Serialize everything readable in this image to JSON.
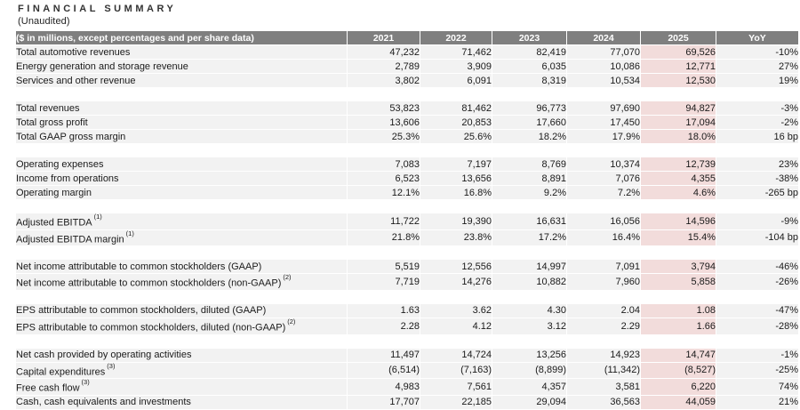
{
  "page": {
    "title": "FINANCIAL SUMMARY",
    "subtitle": "(Unaudited)"
  },
  "table": {
    "header": {
      "label": "($ in millions, except percentages and per share data)",
      "columns": [
        "2021",
        "2022",
        "2023",
        "2024",
        "2025",
        "YoY"
      ]
    },
    "highlight_column": "2025",
    "colors": {
      "header_bg": "#7f7f7f",
      "header_text": "#ffffff",
      "row_bg": "#f2f2f2",
      "highlight_bg": "#f2dcdb",
      "text": "#1a1a1a"
    },
    "sections": [
      {
        "rows": [
          {
            "label": "Total automotive revenues",
            "sup": "",
            "values": [
              "47,232",
              "71,462",
              "82,419",
              "77,070",
              "69,526",
              "-10%"
            ]
          },
          {
            "label": "Energy generation and storage revenue",
            "sup": "",
            "values": [
              "2,789",
              "3,909",
              "6,035",
              "10,086",
              "12,771",
              "27%"
            ]
          },
          {
            "label": "Services and other revenue",
            "sup": "",
            "values": [
              "3,802",
              "6,091",
              "8,319",
              "10,534",
              "12,530",
              "19%"
            ]
          }
        ]
      },
      {
        "rows": [
          {
            "label": "Total revenues",
            "sup": "",
            "values": [
              "53,823",
              "81,462",
              "96,773",
              "97,690",
              "94,827",
              "-3%"
            ]
          },
          {
            "label": "Total gross profit",
            "sup": "",
            "values": [
              "13,606",
              "20,853",
              "17,660",
              "17,450",
              "17,094",
              "-2%"
            ]
          },
          {
            "label": "Total GAAP gross margin",
            "sup": "",
            "values": [
              "25.3%",
              "25.6%",
              "18.2%",
              "17.9%",
              "18.0%",
              "16 bp"
            ]
          }
        ]
      },
      {
        "rows": [
          {
            "label": "Operating expenses",
            "sup": "",
            "values": [
              "7,083",
              "7,197",
              "8,769",
              "10,374",
              "12,739",
              "23%"
            ]
          },
          {
            "label": "Income from operations",
            "sup": "",
            "values": [
              "6,523",
              "13,656",
              "8,891",
              "7,076",
              "4,355",
              "-38%"
            ]
          },
          {
            "label": "Operating margin",
            "sup": "",
            "values": [
              "12.1%",
              "16.8%",
              "9.2%",
              "7.2%",
              "4.6%",
              "-265 bp"
            ]
          }
        ]
      },
      {
        "rows": [
          {
            "label": "Adjusted EBITDA",
            "sup": "(1)",
            "values": [
              "11,722",
              "19,390",
              "16,631",
              "16,056",
              "14,596",
              "-9%"
            ]
          },
          {
            "label": "Adjusted EBITDA margin",
            "sup": "(1)",
            "values": [
              "21.8%",
              "23.8%",
              "17.2%",
              "16.4%",
              "15.4%",
              "-104 bp"
            ]
          }
        ]
      },
      {
        "rows": [
          {
            "label": "Net income attributable to common stockholders (GAAP)",
            "sup": "",
            "values": [
              "5,519",
              "12,556",
              "14,997",
              "7,091",
              "3,794",
              "-46%"
            ]
          },
          {
            "label": "Net income attributable to common stockholders (non-GAAP)",
            "sup": "(2)",
            "values": [
              "7,719",
              "14,276",
              "10,882",
              "7,960",
              "5,858",
              "-26%"
            ]
          }
        ]
      },
      {
        "rows": [
          {
            "label": "EPS attributable to common stockholders, diluted (GAAP)",
            "sup": "",
            "values": [
              "1.63",
              "3.62",
              "4.30",
              "2.04",
              "1.08",
              "-47%"
            ]
          },
          {
            "label": "EPS attributable to common stockholders, diluted (non-GAAP)",
            "sup": "(2)",
            "values": [
              "2.28",
              "4.12",
              "3.12",
              "2.29",
              "1.66",
              "-28%"
            ]
          }
        ]
      },
      {
        "rows": [
          {
            "label": "Net cash provided by operating activities",
            "sup": "",
            "values": [
              "11,497",
              "14,724",
              "13,256",
              "14,923",
              "14,747",
              "-1%"
            ]
          },
          {
            "label": "Capital expenditures",
            "sup": "(3)",
            "values": [
              "(6,514)",
              "(7,163)",
              "(8,899)",
              "(11,342)",
              "(8,527)",
              "-25%"
            ]
          },
          {
            "label": "Free cash flow",
            "sup": "(3)",
            "values": [
              "4,983",
              "7,561",
              "4,357",
              "3,581",
              "6,220",
              "74%"
            ]
          },
          {
            "label": "Cash, cash equivalents and investments",
            "sup": "",
            "values": [
              "17,707",
              "22,185",
              "29,094",
              "36,563",
              "44,059",
              "21%"
            ]
          }
        ]
      }
    ]
  }
}
